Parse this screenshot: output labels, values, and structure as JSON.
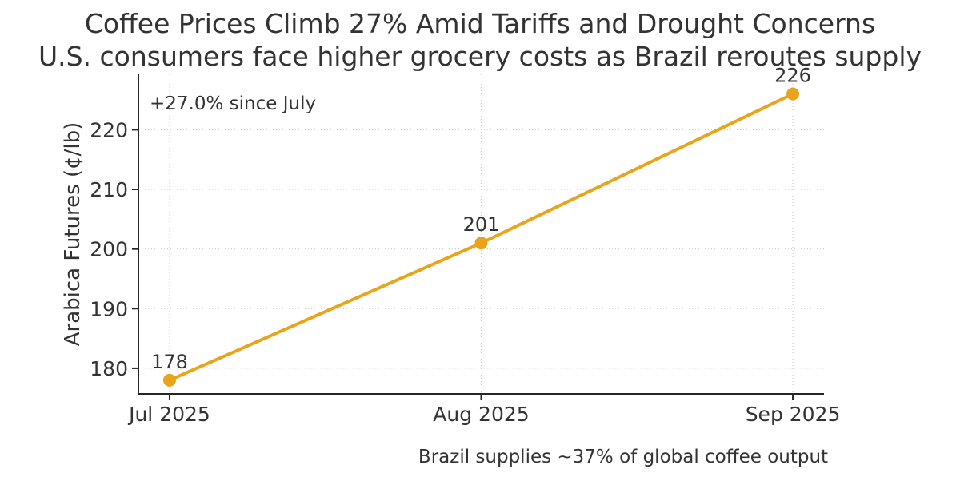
{
  "colors": {
    "line": "#E8A41A",
    "text": "#333333",
    "grid": "#cccccc",
    "spine": "#262626"
  },
  "chart_data": {
    "type": "line",
    "title": "Coffee Prices Climb 27% Amid Tariffs and Drought Concerns",
    "subtitle": "U.S. consumers face higher grocery costs as Brazil reroutes supply",
    "categories": [
      "Jul 2025",
      "Aug 2025",
      "Sep 2025"
    ],
    "series": [
      {
        "name": "Arabica Futures",
        "values": [
          178,
          201,
          226
        ]
      }
    ],
    "point_labels": [
      "178",
      "201",
      "226"
    ],
    "xlabel": "",
    "ylabel": "Arabica Futures (¢/lb)",
    "yticks": [
      180,
      190,
      200,
      210,
      220
    ],
    "ylim": [
      175.7,
      229.3
    ],
    "grid": true,
    "grid_style": "dotted",
    "legend": "none",
    "annotation": "+27.0% since July",
    "footnote": "Brazil supplies ~37% of global coffee output"
  }
}
